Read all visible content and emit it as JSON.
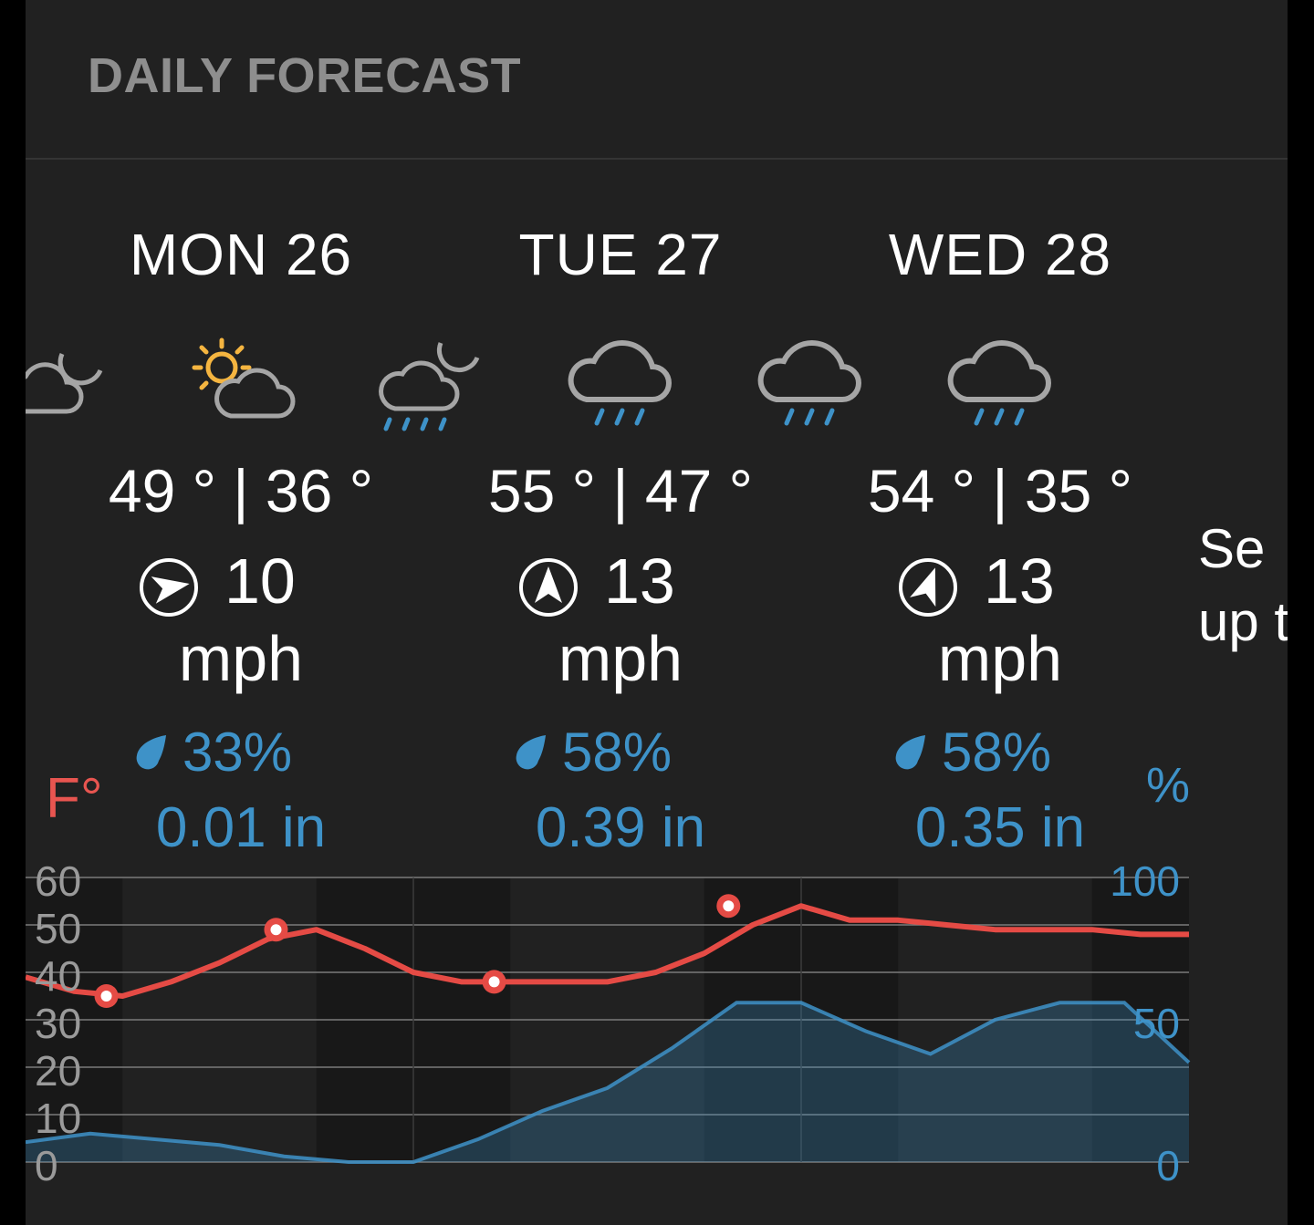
{
  "header": {
    "title": "DAILY FORECAST"
  },
  "days": [
    {
      "label": "MON 26",
      "high": "49 °",
      "low": "36 °",
      "sep": "|",
      "wind_speed": "10",
      "wind_unit": "mph",
      "wind_bearing_deg": 80,
      "precip_chance": "33%",
      "precip_amount": "0.01 in"
    },
    {
      "label": "TUE 27",
      "high": "55 °",
      "low": "47 °",
      "sep": "|",
      "wind_speed": "13",
      "wind_unit": "mph",
      "wind_bearing_deg": 0,
      "precip_chance": "58%",
      "precip_amount": "0.39 in"
    },
    {
      "label": "WED 28",
      "high": "54 °",
      "low": "35 °",
      "sep": "|",
      "wind_speed": "13",
      "wind_unit": "mph",
      "wind_bearing_deg": 20,
      "precip_chance": "58%",
      "precip_amount": "0.35 in"
    }
  ],
  "weather_icons": [
    "night-partly-cloudy-icon",
    "day-partly-cloudy-icon",
    "night-rain-icon",
    "rain-icon",
    "rain-icon",
    "rain-icon"
  ],
  "side_text": {
    "line1": "Se",
    "line2": "up t"
  },
  "chart_data": {
    "type": "line",
    "left_axis": {
      "label": "F°",
      "ticks": [
        "60",
        "50",
        "40",
        "30",
        "20",
        "10",
        "0"
      ],
      "range": [
        0,
        60
      ]
    },
    "right_axis": {
      "label": "%",
      "ticks": [
        "100",
        "50",
        "0"
      ],
      "range": [
        0,
        100
      ]
    },
    "x_unit": "hours",
    "series": [
      {
        "unit": "F°",
        "type": "line",
        "color": "#e54b45",
        "x": [
          0,
          3,
          6,
          9,
          12,
          15,
          18,
          21,
          24,
          27,
          30,
          33,
          36,
          39,
          42,
          45,
          48,
          51,
          54,
          57,
          60,
          63,
          66,
          69,
          72
        ],
        "values": [
          39,
          36,
          35,
          38,
          42,
          47,
          49,
          45,
          40,
          38,
          38,
          38,
          38,
          40,
          44,
          50,
          54,
          51,
          51,
          50,
          49,
          49,
          49,
          48,
          48
        ],
        "markers": [
          {
            "x": 5,
            "value": 35
          },
          {
            "x": 15.5,
            "value": 49
          },
          {
            "x": 29,
            "value": 38
          },
          {
            "x": 43.5,
            "value": 54
          }
        ]
      },
      {
        "unit": "%",
        "type": "area",
        "color": "#3e92c8",
        "x": [
          0,
          4,
          8,
          12,
          16,
          20,
          24,
          28,
          32,
          36,
          40,
          44,
          48,
          52,
          56,
          60,
          64,
          68,
          72
        ],
        "values": [
          7,
          10,
          8,
          6,
          2,
          0,
          0,
          8,
          18,
          26,
          40,
          56,
          56,
          46,
          38,
          50,
          56,
          56,
          35
        ]
      }
    ]
  }
}
